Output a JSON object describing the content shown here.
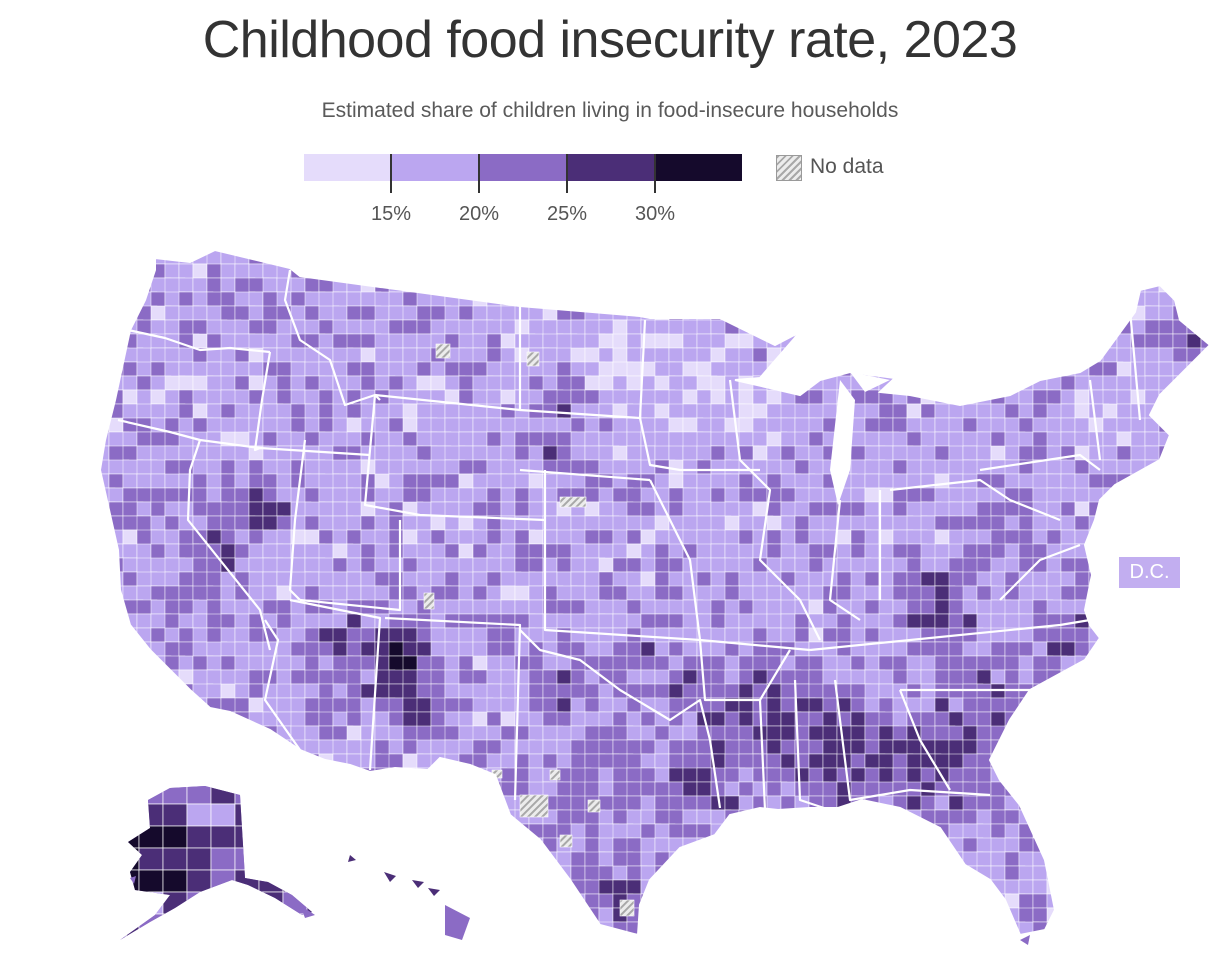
{
  "title": "Childhood food insecurity rate, 2023",
  "subtitle": "Estimated share of children living in food-insecure households",
  "legend": {
    "bins": [
      {
        "color": "#e5dcfb"
      },
      {
        "color": "#bba6f0"
      },
      {
        "color": "#8b6bc5"
      },
      {
        "color": "#4b2e77"
      },
      {
        "color": "#150a2c"
      }
    ],
    "ticks": [
      "15%",
      "20%",
      "25%",
      "30%"
    ],
    "no_data_label": "No data"
  },
  "dc_label": "D.C.",
  "colors": {
    "background": "#ffffff",
    "state_border": "#ffffff",
    "no_data": "#c8c8c8"
  }
}
